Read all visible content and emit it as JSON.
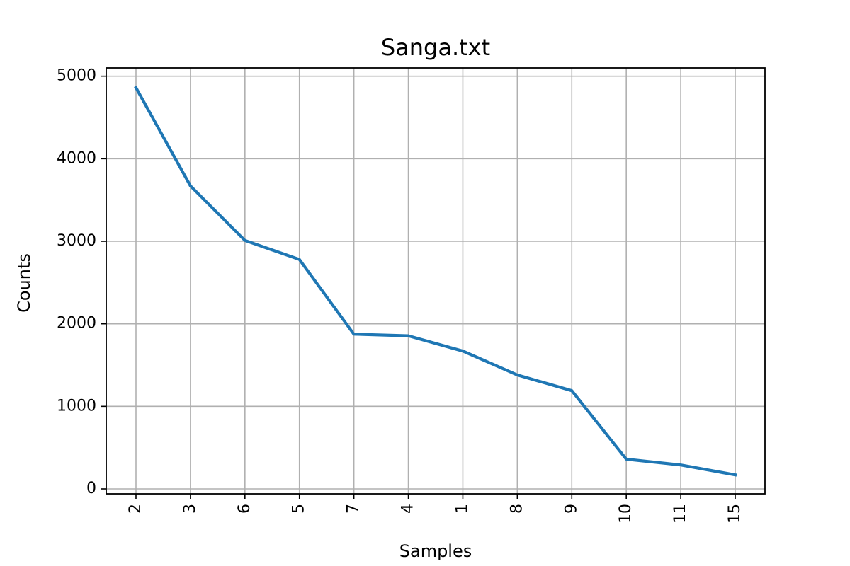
{
  "chart_data": {
    "type": "line",
    "title": "Sanga.txt",
    "xlabel": "Samples",
    "ylabel": "Counts",
    "categories": [
      "2",
      "3",
      "6",
      "5",
      "7",
      "4",
      "1",
      "8",
      "9",
      "10",
      "11",
      "15"
    ],
    "series": [
      {
        "values": [
          4860,
          3670,
          3010,
          2780,
          1875,
          1855,
          1670,
          1380,
          1190,
          360,
          290,
          170
        ]
      }
    ],
    "yticks": [
      0,
      1000,
      2000,
      3000,
      4000,
      5000
    ],
    "ylim": [
      -60,
      5100
    ],
    "grid": true,
    "line_color": "#1f77b4"
  }
}
